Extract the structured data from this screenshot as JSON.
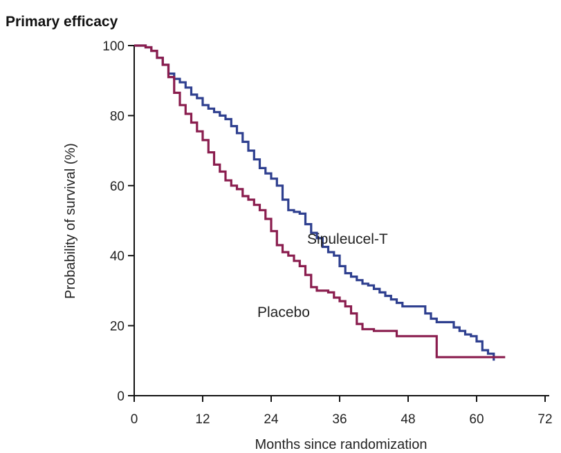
{
  "chart_data": {
    "type": "line",
    "title": "Primary efficacy",
    "xlabel": "Months since randomization",
    "ylabel": "Probability of survival (%)",
    "xlim": [
      0,
      72
    ],
    "ylim": [
      0,
      100
    ],
    "xticks": [
      0,
      12,
      24,
      36,
      48,
      60,
      72
    ],
    "yticks": [
      0,
      20,
      40,
      60,
      80,
      100
    ],
    "grid": false,
    "legend": "none (direct labels)",
    "series": [
      {
        "name": "Sipuleucel-T",
        "color": "#2e3f8f",
        "label_text": "Sipuleucel-T",
        "step": true,
        "x": [
          0,
          1,
          2,
          3,
          4,
          5,
          6,
          7,
          8,
          9,
          10,
          11,
          12,
          13,
          14,
          15,
          16,
          17,
          18,
          19,
          20,
          21,
          22,
          23,
          24,
          25,
          26,
          27,
          28,
          29,
          30,
          31,
          32,
          33,
          34,
          35,
          36,
          37,
          38,
          39,
          40,
          41,
          42,
          43,
          44,
          45,
          46,
          47,
          48,
          49,
          50,
          51,
          52,
          53,
          54,
          55,
          56,
          57,
          58,
          59,
          60,
          61,
          62,
          63
        ],
        "y": [
          100,
          100,
          99.5,
          98.5,
          96.5,
          94.5,
          92,
          90.5,
          89.5,
          88,
          86,
          85,
          83,
          82,
          81,
          80,
          79,
          77,
          75,
          72.5,
          70,
          67.5,
          65,
          63.5,
          62,
          60,
          56,
          53,
          52.5,
          52,
          49,
          46.5,
          45,
          42.5,
          41,
          40,
          37,
          35,
          34,
          33,
          32,
          31.5,
          30.5,
          29.5,
          28.5,
          27.5,
          26.5,
          25.5,
          25.5,
          25.5,
          25.5,
          23.5,
          22,
          21,
          21,
          21,
          19.5,
          18.5,
          17.5,
          17,
          15.5,
          13,
          12,
          10
        ]
      },
      {
        "name": "Placebo",
        "color": "#8a1d4e",
        "label_text": "Placebo",
        "step": true,
        "x": [
          0,
          1,
          2,
          3,
          4,
          5,
          6,
          7,
          8,
          9,
          10,
          11,
          12,
          13,
          14,
          15,
          16,
          17,
          18,
          19,
          20,
          21,
          22,
          23,
          24,
          25,
          26,
          27,
          28,
          29,
          30,
          31,
          32,
          33,
          34,
          35,
          36,
          37,
          38,
          39,
          40,
          41,
          42,
          43,
          44,
          45,
          46,
          47,
          48,
          49,
          50,
          51,
          52,
          53,
          54,
          55,
          56,
          57,
          58,
          59,
          60,
          61,
          62,
          63,
          64,
          65
        ],
        "y": [
          100,
          100,
          99.5,
          98.5,
          96.5,
          94.5,
          91,
          86.5,
          83,
          80.5,
          78,
          75.5,
          73,
          69.5,
          66,
          64,
          61.5,
          60,
          59,
          57,
          56,
          54.5,
          53,
          50.5,
          47,
          43,
          41,
          40,
          38.5,
          37,
          34.5,
          31,
          30,
          30,
          29.5,
          28,
          27,
          25.5,
          23.5,
          20.5,
          19,
          19,
          18.5,
          18.5,
          18.5,
          18.5,
          17,
          17,
          17,
          17,
          17,
          17,
          17,
          11,
          11,
          11,
          11,
          11,
          11,
          11,
          11,
          11,
          11,
          11,
          11,
          11
        ]
      }
    ]
  }
}
